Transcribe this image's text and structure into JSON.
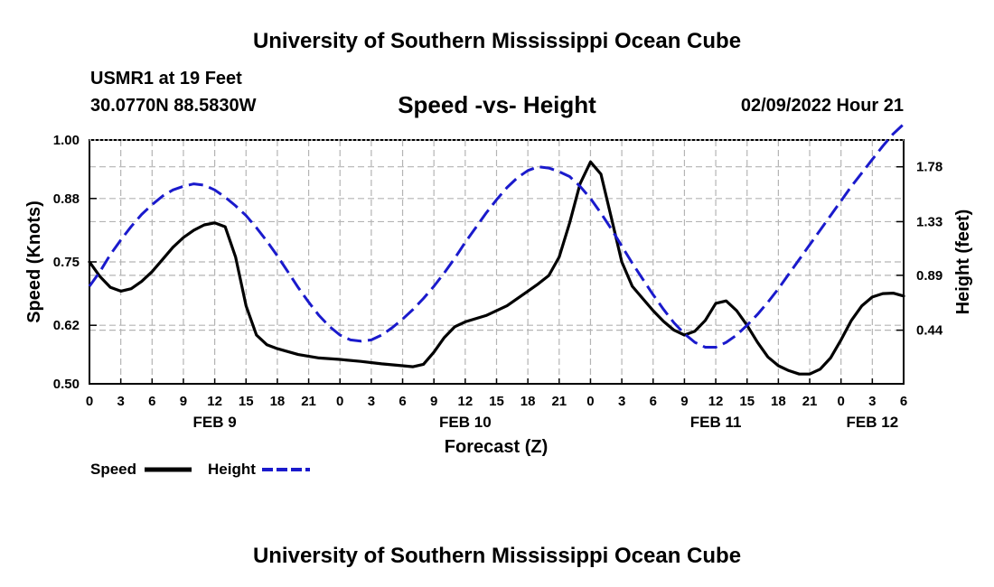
{
  "header": {
    "main_title": "University of Southern Mississippi Ocean Cube",
    "station": "USMR1 at 19 Feet",
    "coords": "30.0770N  88.5830W",
    "subtitle": "Speed -vs- Height",
    "datetime": "02/09/2022 Hour 21"
  },
  "footer": {
    "title": "University of Southern Mississippi Ocean Cube"
  },
  "legend": {
    "speed_label": "Speed",
    "height_label": "Height"
  },
  "chart_data": {
    "type": "line",
    "xlabel": "Forecast (Z)",
    "ylabel_left": "Speed (Knots)",
    "ylabel_right": "Height (feet)",
    "x_range_hours": [
      0,
      78
    ],
    "x_tick_hours": [
      0,
      3,
      6,
      9,
      12,
      15,
      18,
      21,
      24,
      27,
      30,
      33,
      36,
      39,
      42,
      45,
      48,
      51,
      54,
      57,
      60,
      63,
      66,
      69,
      72,
      75,
      78
    ],
    "x_tick_labels": [
      "0",
      "3",
      "6",
      "9",
      "12",
      "15",
      "18",
      "21",
      "0",
      "3",
      "6",
      "9",
      "12",
      "15",
      "18",
      "21",
      "0",
      "3",
      "6",
      "9",
      "12",
      "15",
      "18",
      "21",
      "0",
      "3",
      "6"
    ],
    "date_labels": [
      {
        "hour": 12,
        "label": "FEB 9"
      },
      {
        "hour": 36,
        "label": "FEB 10"
      },
      {
        "hour": 60,
        "label": "FEB 11"
      },
      {
        "hour": 75,
        "label": "FEB 12"
      }
    ],
    "ylim_left": [
      0.5,
      1.0
    ],
    "y_ticks_left": [
      0.5,
      0.62,
      0.75,
      0.88,
      1.0
    ],
    "y_tick_labels_left": [
      "0.50",
      "0.62",
      "0.75",
      "0.88",
      "1.00"
    ],
    "ylim_right": [
      0.0,
      2.0
    ],
    "y_ticks_right": [
      0.44,
      0.89,
      1.33,
      1.78
    ],
    "y_tick_labels_right": [
      "0.44",
      "0.89",
      "1.33",
      "1.78"
    ],
    "series": [
      {
        "name": "Speed",
        "axis": "left",
        "color": "#000000",
        "style": "solid",
        "x": [
          0,
          1,
          2,
          3,
          4,
          5,
          6,
          7,
          8,
          9,
          10,
          11,
          12,
          13,
          14,
          15,
          16,
          17,
          18,
          20,
          22,
          24,
          26,
          28,
          30,
          31,
          32,
          33,
          34,
          35,
          36,
          38,
          40,
          42,
          43,
          44,
          45,
          46,
          47,
          48,
          49,
          50,
          51,
          52,
          53,
          54,
          55,
          56,
          57,
          58,
          59,
          60,
          61,
          62,
          63,
          64,
          65,
          66,
          67,
          68,
          69,
          70,
          71,
          72,
          73,
          74,
          75,
          76,
          77,
          78
        ],
        "values": [
          0.75,
          0.72,
          0.698,
          0.69,
          0.695,
          0.71,
          0.73,
          0.755,
          0.78,
          0.8,
          0.815,
          0.826,
          0.83,
          0.822,
          0.76,
          0.66,
          0.6,
          0.58,
          0.572,
          0.56,
          0.553,
          0.55,
          0.546,
          0.541,
          0.537,
          0.535,
          0.54,
          0.565,
          0.595,
          0.617,
          0.627,
          0.64,
          0.66,
          0.69,
          0.705,
          0.722,
          0.76,
          0.83,
          0.91,
          0.955,
          0.93,
          0.84,
          0.75,
          0.7,
          0.675,
          0.65,
          0.628,
          0.61,
          0.6,
          0.608,
          0.63,
          0.665,
          0.67,
          0.65,
          0.62,
          0.585,
          0.555,
          0.537,
          0.527,
          0.52,
          0.52,
          0.53,
          0.553,
          0.59,
          0.63,
          0.66,
          0.678,
          0.685,
          0.686,
          0.68
        ]
      },
      {
        "name": "Height",
        "axis": "right",
        "color": "#1a1acc",
        "style": "dashed",
        "x": [
          0,
          1,
          2,
          3,
          4,
          5,
          6,
          7,
          8,
          9,
          10,
          11,
          12,
          13,
          14,
          15,
          16,
          17,
          18,
          19,
          20,
          21,
          22,
          23,
          24,
          25,
          26,
          27,
          28,
          29,
          30,
          31,
          32,
          33,
          34,
          35,
          36,
          37,
          38,
          39,
          40,
          41,
          42,
          43,
          44,
          45,
          46,
          47,
          48,
          49,
          50,
          51,
          52,
          53,
          54,
          55,
          56,
          57,
          58,
          59,
          60,
          61,
          62,
          63,
          64,
          65,
          66,
          67,
          68,
          69,
          70,
          71,
          72,
          73,
          74,
          75,
          76,
          77,
          78
        ],
        "values": [
          0.8,
          0.92,
          1.06,
          1.18,
          1.29,
          1.39,
          1.47,
          1.54,
          1.59,
          1.62,
          1.64,
          1.63,
          1.59,
          1.53,
          1.46,
          1.38,
          1.28,
          1.17,
          1.05,
          0.92,
          0.79,
          0.67,
          0.56,
          0.47,
          0.4,
          0.36,
          0.35,
          0.36,
          0.4,
          0.46,
          0.53,
          0.61,
          0.7,
          0.8,
          0.91,
          1.03,
          1.16,
          1.28,
          1.4,
          1.51,
          1.61,
          1.69,
          1.75,
          1.78,
          1.77,
          1.74,
          1.7,
          1.62,
          1.52,
          1.4,
          1.27,
          1.13,
          0.99,
          0.86,
          0.73,
          0.61,
          0.5,
          0.41,
          0.34,
          0.3,
          0.3,
          0.34,
          0.4,
          0.48,
          0.57,
          0.67,
          0.78,
          0.9,
          1.02,
          1.14,
          1.26,
          1.38,
          1.5,
          1.62,
          1.73,
          1.84,
          1.95,
          2.05,
          2.13
        ]
      }
    ]
  }
}
